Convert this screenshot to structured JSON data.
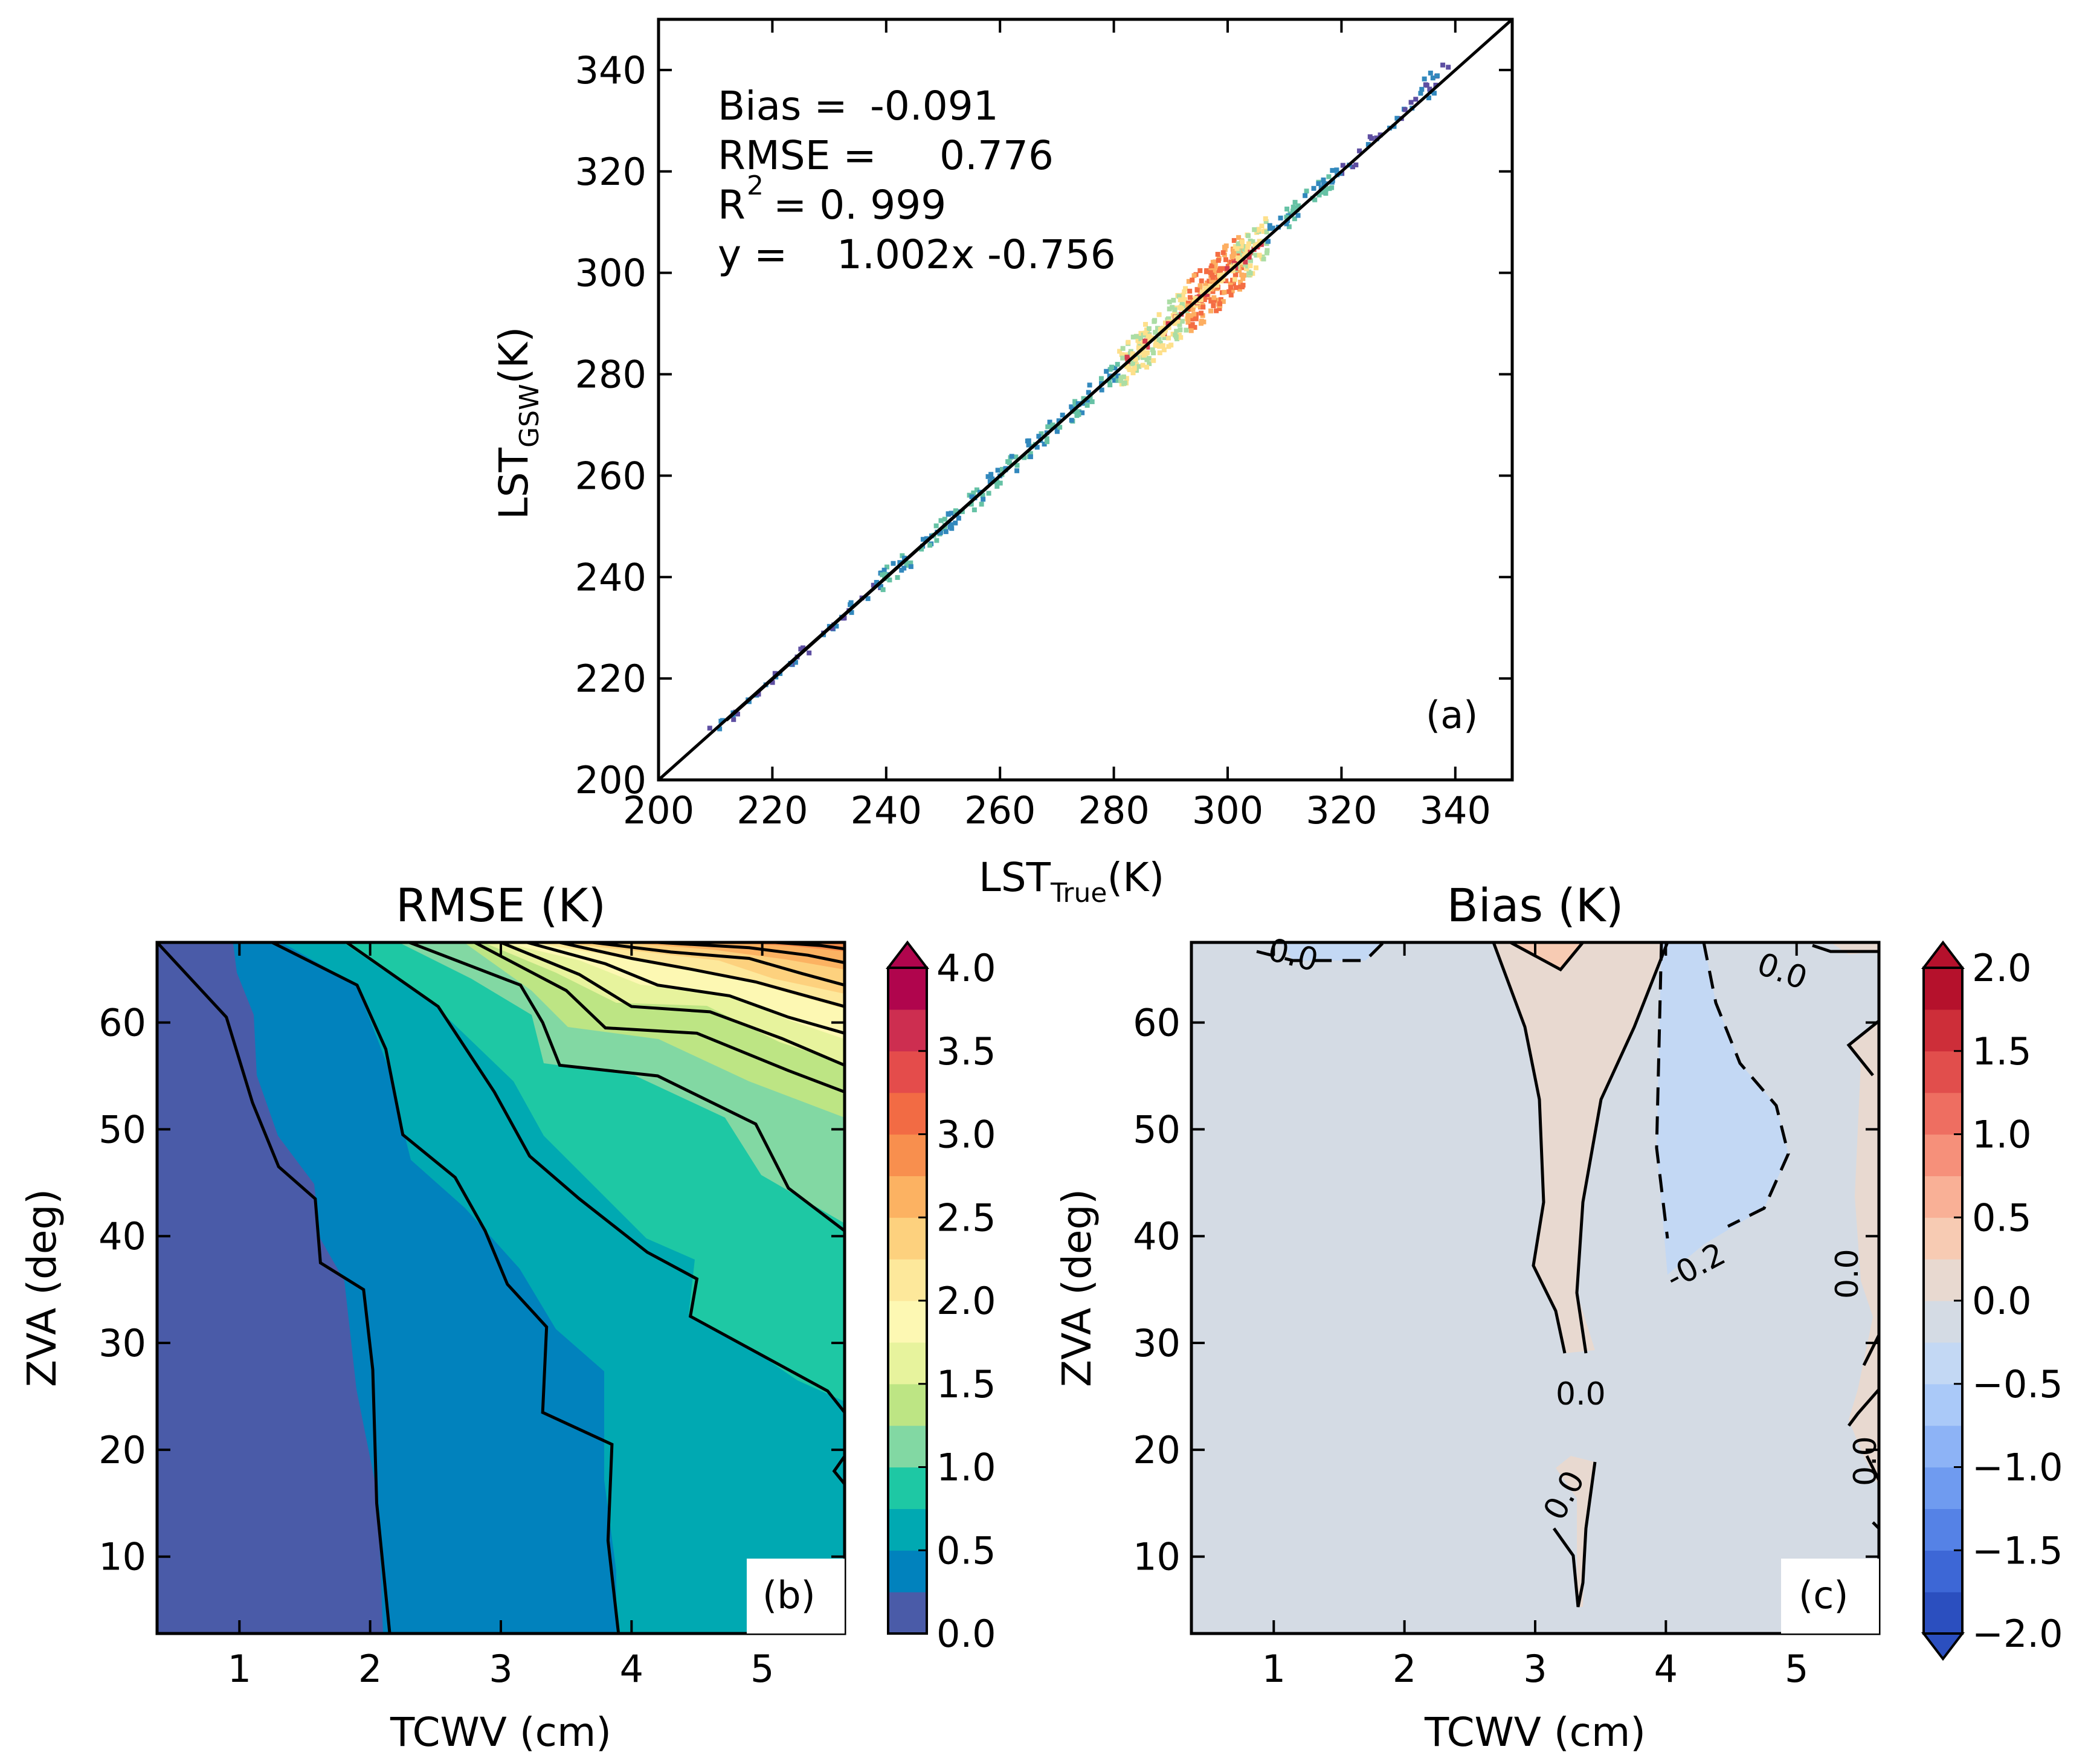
{
  "chart_data": [
    {
      "panel": "(a)",
      "type": "scatter",
      "xlabel": "LST",
      "xlabel_sub": "True",
      "xlabel_unit": "(K)",
      "ylabel": "LST",
      "ylabel_sub": "GSW",
      "ylabel_unit": "(K)",
      "xlim": [
        200,
        350
      ],
      "ylim": [
        200,
        350
      ],
      "xticks": [
        200,
        220,
        240,
        260,
        280,
        300,
        320,
        340
      ],
      "yticks": [
        200,
        220,
        240,
        260,
        280,
        300,
        320,
        340
      ],
      "annotations": {
        "bias_label": "Bias =",
        "bias_value": "-0.091",
        "rmse_label": "RMSE =",
        "rmse_value": "0.776",
        "r2_label": "R",
        "r2_sup": "2",
        "r2_value": "= 0. 999",
        "fit_label": "y =",
        "fit_value": "1.002x -0.756"
      },
      "fit": {
        "slope": 1.002,
        "intercept": -0.756
      },
      "identity_line": true,
      "density": [
        {
          "x": 212,
          "y": 211.9,
          "level": "low"
        },
        {
          "x": 218,
          "y": 217.8,
          "level": "low"
        },
        {
          "x": 224,
          "y": 223.9,
          "level": "low"
        },
        {
          "x": 230,
          "y": 229.8,
          "level": "low"
        },
        {
          "x": 236,
          "y": 235.9,
          "level": "low"
        },
        {
          "x": 242,
          "y": 241.8,
          "level": "mid"
        },
        {
          "x": 248,
          "y": 247.9,
          "level": "mid"
        },
        {
          "x": 254,
          "y": 253.8,
          "level": "mid"
        },
        {
          "x": 260,
          "y": 260.0,
          "level": "mid"
        },
        {
          "x": 266,
          "y": 266.2,
          "level": "mid"
        },
        {
          "x": 272,
          "y": 272.0,
          "level": "mid"
        },
        {
          "x": 278,
          "y": 278.1,
          "level": "mid"
        },
        {
          "x": 284,
          "y": 284.2,
          "level": "high"
        },
        {
          "x": 290,
          "y": 290.1,
          "level": "high"
        },
        {
          "x": 296,
          "y": 296.0,
          "level": "peak"
        },
        {
          "x": 300,
          "y": 300.2,
          "level": "peak"
        },
        {
          "x": 304,
          "y": 304.0,
          "level": "high"
        },
        {
          "x": 310,
          "y": 310.3,
          "level": "mid"
        },
        {
          "x": 316,
          "y": 316.2,
          "level": "mid"
        },
        {
          "x": 322,
          "y": 322.0,
          "level": "low"
        },
        {
          "x": 328,
          "y": 328.4,
          "level": "low"
        },
        {
          "x": 334,
          "y": 334.5,
          "level": "low"
        },
        {
          "x": 337,
          "y": 339.5,
          "level": "low"
        }
      ],
      "panel_tag": "(a)"
    },
    {
      "panel": "(b)",
      "type": "heatmap",
      "title": "RMSE (K)",
      "xlabel": "TCWV (cm)",
      "ylabel": "ZVA (deg)",
      "xlim": [
        0.37,
        5.63
      ],
      "ylim": [
        2.8,
        67.5
      ],
      "xticks": [
        1,
        2,
        3,
        4,
        5
      ],
      "yticks": [
        10,
        20,
        30,
        40,
        50,
        60
      ],
      "colorbar": {
        "min": 0.0,
        "max": 4.0,
        "ticks": [
          "0.0",
          "0.5",
          "1.0",
          "1.5",
          "2.0",
          "2.5",
          "3.0",
          "3.5",
          "4.0"
        ],
        "colors": [
          "#4a5ba8",
          "#0182bd",
          "#00a9b2",
          "#1ec8a4",
          "#82d8a3",
          "#bde584",
          "#e7f39d",
          "#fdf8b3",
          "#fde89b",
          "#fdd17e",
          "#fcb262",
          "#f88f4e",
          "#f26b44",
          "#e44c4b",
          "#cd2e50",
          "#b0054d"
        ],
        "extend": "max"
      },
      "contour_lines": [
        [
          [
            0.37,
            67.5
          ],
          [
            0.9,
            60.5
          ],
          [
            1.1,
            52.5
          ],
          [
            1.3,
            46.5
          ],
          [
            1.58,
            43.5
          ],
          [
            1.62,
            37.5
          ],
          [
            1.95,
            35.0
          ],
          [
            2.02,
            27.5
          ],
          [
            2.05,
            15.0
          ],
          [
            2.15,
            2.8
          ]
        ],
        [
          [
            1.25,
            67.5
          ],
          [
            1.9,
            63.5
          ],
          [
            2.12,
            57.5
          ],
          [
            2.25,
            49.5
          ],
          [
            2.65,
            45.5
          ],
          [
            2.88,
            40.5
          ],
          [
            3.05,
            35.5
          ],
          [
            3.35,
            31.5
          ],
          [
            3.32,
            23.5
          ],
          [
            3.85,
            20.5
          ],
          [
            3.82,
            11.5
          ],
          [
            3.9,
            2.8
          ]
        ],
        [
          [
            1.82,
            67.5
          ],
          [
            2.52,
            61.5
          ],
          [
            2.95,
            53.5
          ],
          [
            3.22,
            47.5
          ],
          [
            3.6,
            43.5
          ],
          [
            4.12,
            38.5
          ],
          [
            4.5,
            36.0
          ],
          [
            4.45,
            32.5
          ],
          [
            4.9,
            29.5
          ],
          [
            5.5,
            25.5
          ],
          [
            5.63,
            23.5
          ]
        ],
        [
          [
            2.3,
            67.5
          ],
          [
            3.15,
            63.5
          ],
          [
            3.32,
            60.0
          ],
          [
            3.45,
            56.0
          ],
          [
            4.2,
            55.0
          ],
          [
            4.95,
            50.5
          ],
          [
            5.2,
            44.5
          ],
          [
            5.63,
            40.5
          ]
        ],
        [
          [
            2.8,
            67.5
          ],
          [
            3.5,
            63.0
          ],
          [
            3.8,
            59.5
          ],
          [
            4.5,
            59.0
          ],
          [
            5.2,
            55.5
          ],
          [
            5.63,
            53.5
          ]
        ],
        [
          [
            3.0,
            67.5
          ],
          [
            3.6,
            64.5
          ],
          [
            4.0,
            61.5
          ],
          [
            4.6,
            61.0
          ],
          [
            5.15,
            58.5
          ],
          [
            5.63,
            56.0
          ]
        ],
        [
          [
            3.2,
            67.5
          ],
          [
            3.8,
            65.5
          ],
          [
            4.2,
            63.5
          ],
          [
            4.75,
            62.5
          ],
          [
            5.2,
            60.5
          ],
          [
            5.63,
            59.0
          ]
        ],
        [
          [
            3.45,
            67.5
          ],
          [
            4.0,
            66.0
          ],
          [
            4.45,
            65.0
          ],
          [
            4.95,
            63.8
          ],
          [
            5.63,
            61.5
          ]
        ],
        [
          [
            3.7,
            67.5
          ],
          [
            4.3,
            66.6
          ],
          [
            4.9,
            66.0
          ],
          [
            5.3,
            64.6
          ],
          [
            5.63,
            63.5
          ]
        ],
        [
          [
            4.2,
            67.5
          ],
          [
            4.9,
            67.0
          ],
          [
            5.35,
            66.3
          ],
          [
            5.63,
            65.6
          ]
        ],
        [
          [
            5.1,
            67.5
          ],
          [
            5.45,
            67.2
          ],
          [
            5.63,
            66.9
          ]
        ],
        [
          [
            5.63,
            19.4
          ],
          [
            5.55,
            18.0
          ],
          [
            5.63,
            16.8
          ]
        ]
      ],
      "panel_tag": "(b)"
    },
    {
      "panel": "(c)",
      "type": "heatmap",
      "title": "Bias (K)",
      "xlabel": "TCWV (cm)",
      "ylabel": "ZVA (deg)",
      "xlim": [
        0.37,
        5.63
      ],
      "ylim": [
        2.8,
        67.5
      ],
      "xticks": [
        1,
        2,
        3,
        4,
        5
      ],
      "yticks": [
        10,
        20,
        30,
        40,
        50,
        60
      ],
      "colorbar": {
        "min": -2.0,
        "max": 2.0,
        "ticks": [
          "−2.0",
          "−1.5",
          "−1.0",
          "−0.5",
          "0.0",
          "0.5",
          "1.0",
          "1.5",
          "2.0"
        ],
        "colors": [
          "#2b4fbf",
          "#3d67d6",
          "#5582e6",
          "#6f9bf0",
          "#8db3f6",
          "#aac9f8",
          "#c3d8f4",
          "#d4dbe4",
          "#e8d9d0",
          "#f7cbb3",
          "#f9b096",
          "#f6907a",
          "#ee6e61",
          "#e14e4c",
          "#cd2e39",
          "#b5112c"
        ],
        "extend": "both"
      },
      "contour_labels": [
        "0.0",
        "0.0",
        "-0.2",
        "0.0",
        "-0.2",
        "0.0",
        "0.0",
        "0.0"
      ],
      "panel_tag": "(c)"
    }
  ]
}
